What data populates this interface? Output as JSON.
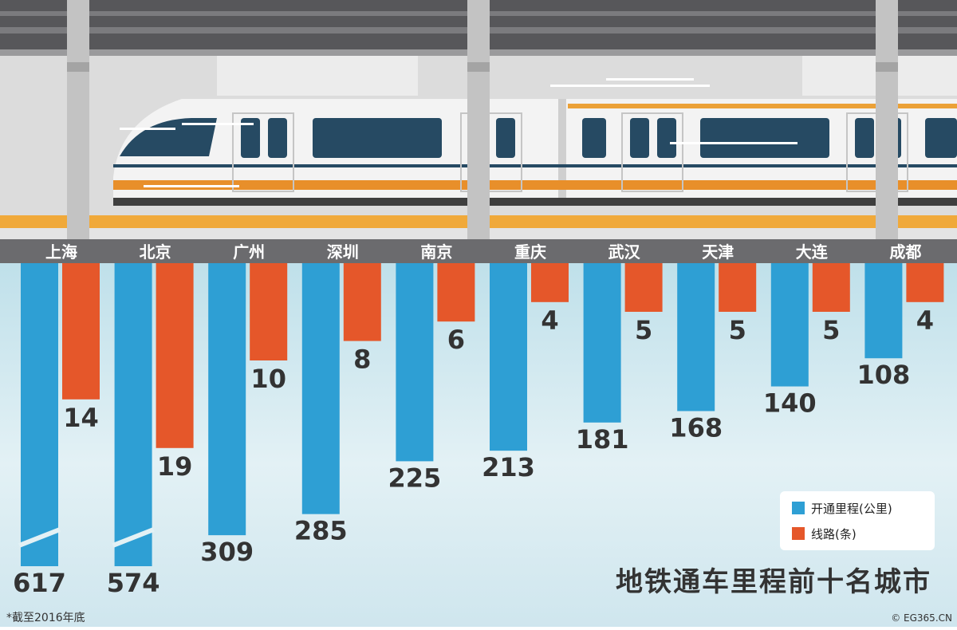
{
  "chart_data": {
    "type": "bar",
    "title": "地铁通车里程前十名城市",
    "note": "*截至2016年底",
    "credit": "© EG365.CN",
    "categories": [
      "上海",
      "北京",
      "广州",
      "深圳",
      "南京",
      "重庆",
      "武汉",
      "天津",
      "大连",
      "成都"
    ],
    "series": [
      {
        "name": "开通里程(公里)",
        "color": "#2e9fd4",
        "values": [
          617,
          574,
          309,
          285,
          225,
          213,
          181,
          168,
          140,
          108
        ]
      },
      {
        "name": "线路(条)",
        "color": "#e5572a",
        "values": [
          14,
          19,
          10,
          8,
          6,
          4,
          5,
          5,
          5,
          4
        ]
      }
    ],
    "broken_axis_bars": [
      "上海",
      "北京"
    ]
  }
}
